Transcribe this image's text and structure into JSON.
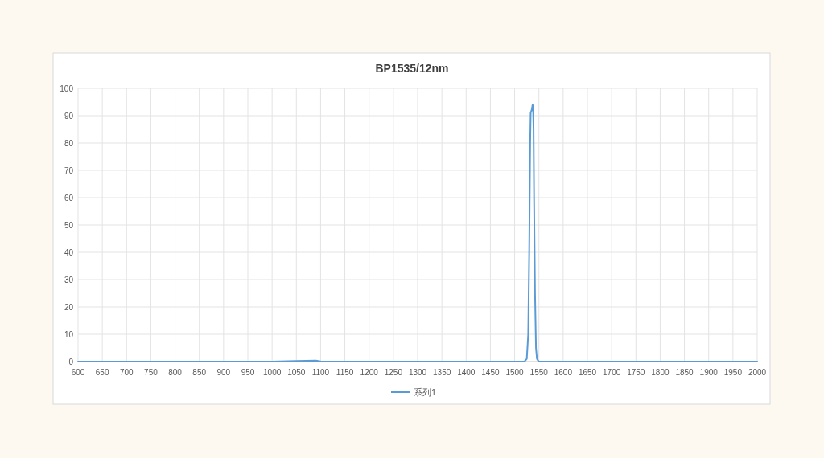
{
  "chart_data": {
    "type": "line",
    "title": "BP1535/12nm",
    "x": [
      600,
      700,
      800,
      900,
      1000,
      1050,
      1090,
      1100,
      1200,
      1300,
      1400,
      1500,
      1520,
      1525,
      1528,
      1530,
      1532,
      1533,
      1535,
      1536,
      1537,
      1538,
      1539,
      1540,
      1542,
      1544,
      1546,
      1550,
      1600,
      1700,
      1800,
      1900,
      2000
    ],
    "series": [
      {
        "name": "系列1",
        "color": "#5b9bd5",
        "values": [
          0,
          0,
          0,
          0,
          0,
          0.2,
          0.4,
          0.1,
          0,
          0,
          0,
          0,
          0,
          1,
          10,
          40,
          80,
          91,
          92,
          93,
          94,
          93,
          85,
          60,
          25,
          5,
          1,
          0,
          0,
          0,
          0,
          0,
          0
        ]
      }
    ],
    "xlim": [
      600,
      2000
    ],
    "xticks": [
      600,
      650,
      700,
      750,
      800,
      850,
      900,
      950,
      1000,
      1050,
      1100,
      1150,
      1200,
      1250,
      1300,
      1350,
      1400,
      1450,
      1500,
      1550,
      1600,
      1650,
      1700,
      1750,
      1800,
      1850,
      1900,
      1950,
      2000
    ],
    "ylim": [
      0,
      100
    ],
    "yticks": [
      0,
      10,
      20,
      30,
      40,
      50,
      60,
      70,
      80,
      90,
      100
    ],
    "grid": true,
    "legend": "bottom",
    "marker": "none",
    "line_style": "solid"
  }
}
